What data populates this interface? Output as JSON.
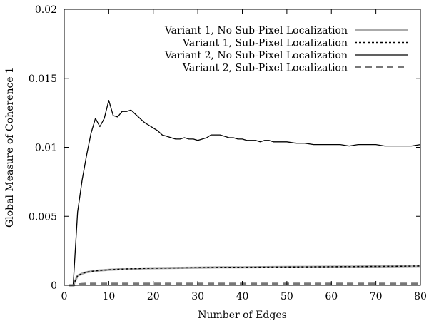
{
  "chart_data": {
    "type": "line",
    "xlabel": "Number of Edges",
    "ylabel": "Global Measure of Coherence 1",
    "xlim": [
      0,
      80
    ],
    "ylim": [
      0,
      0.02
    ],
    "xticks": [
      "0",
      "10",
      "20",
      "30",
      "40",
      "50",
      "60",
      "70",
      "80"
    ],
    "yticks": [
      "0",
      "0.005",
      "0.01",
      "0.015",
      "0.02"
    ],
    "grid": false,
    "legend_position": "top-right",
    "series": [
      {
        "name": "Variant 1, No Sub-Pixel Localization",
        "color": "#aaaaaa",
        "style": "solid-thick",
        "x": [
          1,
          2,
          3,
          4,
          5,
          6,
          7,
          8,
          9,
          10,
          12,
          14,
          16,
          18,
          20,
          25,
          30,
          35,
          40,
          45,
          50,
          55,
          60,
          65,
          70,
          75,
          80
        ],
        "y": [
          0,
          0,
          0.0007,
          0.00085,
          0.00095,
          0.001,
          0.00105,
          0.00108,
          0.0011,
          0.00112,
          0.00116,
          0.00119,
          0.00121,
          0.00123,
          0.00124,
          0.00126,
          0.00128,
          0.0013,
          0.00131,
          0.00132,
          0.00133,
          0.00134,
          0.00135,
          0.00136,
          0.00137,
          0.00138,
          0.0014
        ]
      },
      {
        "name": "Variant 1, Sub-Pixel Localization",
        "color": "#000000",
        "style": "dotted",
        "x": [
          1,
          2,
          3,
          4,
          5,
          6,
          7,
          8,
          9,
          10,
          12,
          14,
          16,
          18,
          20,
          25,
          30,
          35,
          40,
          45,
          50,
          55,
          60,
          65,
          70,
          75,
          80
        ],
        "y": [
          0,
          0,
          0.0007,
          0.00085,
          0.00095,
          0.001,
          0.00105,
          0.00108,
          0.0011,
          0.00112,
          0.00116,
          0.00119,
          0.00121,
          0.00123,
          0.00124,
          0.00126,
          0.00128,
          0.0013,
          0.00131,
          0.00132,
          0.00133,
          0.00134,
          0.00135,
          0.00136,
          0.00137,
          0.00138,
          0.0014
        ]
      },
      {
        "name": "Variant 2, No Sub-Pixel Localization",
        "color": "#000000",
        "style": "solid",
        "x": [
          1,
          2,
          3,
          4,
          5,
          6,
          7,
          8,
          9,
          10,
          11,
          12,
          13,
          14,
          15,
          16,
          17,
          18,
          19,
          20,
          21,
          22,
          23,
          24,
          25,
          26,
          27,
          28,
          29,
          30,
          31,
          32,
          33,
          34,
          35,
          36,
          37,
          38,
          39,
          40,
          41,
          42,
          43,
          44,
          45,
          46,
          47,
          48,
          49,
          50,
          52,
          54,
          56,
          58,
          60,
          62,
          64,
          66,
          68,
          70,
          72,
          74,
          76,
          78,
          80
        ],
        "y": [
          0,
          0,
          0.0053,
          0.0076,
          0.0094,
          0.011,
          0.0121,
          0.0115,
          0.0121,
          0.0134,
          0.0123,
          0.0122,
          0.0126,
          0.0126,
          0.0127,
          0.0124,
          0.0121,
          0.0118,
          0.0116,
          0.0114,
          0.0112,
          0.0109,
          0.0108,
          0.0107,
          0.0106,
          0.0106,
          0.0107,
          0.0106,
          0.0106,
          0.0105,
          0.0106,
          0.0107,
          0.0109,
          0.0109,
          0.0109,
          0.0108,
          0.0107,
          0.0107,
          0.0106,
          0.0106,
          0.0105,
          0.0105,
          0.0105,
          0.0104,
          0.0105,
          0.0105,
          0.0104,
          0.0104,
          0.0104,
          0.0104,
          0.0103,
          0.0103,
          0.0102,
          0.0102,
          0.0102,
          0.0102,
          0.0101,
          0.0102,
          0.0102,
          0.0102,
          0.0101,
          0.0101,
          0.0101,
          0.0101,
          0.0102
        ]
      },
      {
        "name": "Variant 2, Sub-Pixel Localization",
        "color": "#777777",
        "style": "dashed-thick",
        "x": [
          1,
          2,
          3,
          4,
          5,
          6,
          8,
          10,
          15,
          20,
          30,
          40,
          50,
          60,
          70,
          80
        ],
        "y": [
          0,
          0,
          5e-05,
          0.0001,
          0.00012,
          0.00012,
          0.00012,
          0.00012,
          0.00012,
          0.00012,
          0.00012,
          0.00012,
          0.00012,
          0.00012,
          0.00012,
          0.00012
        ]
      }
    ]
  }
}
